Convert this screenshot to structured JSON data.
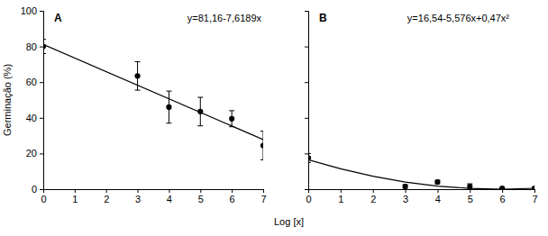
{
  "chart_data": [
    {
      "type": "scatter",
      "title": "A",
      "y_label": "Germinação (%)",
      "x_label": "Log [x]",
      "xlim": [
        0,
        7
      ],
      "xticks": [
        0,
        1,
        2,
        3,
        4,
        5,
        6,
        7
      ],
      "ylim": [
        0,
        100
      ],
      "yticks": [
        0,
        20,
        40,
        60,
        80,
        100
      ],
      "annotations": [
        {
          "text": "y=81,16-7,6189x"
        }
      ],
      "series": [
        {
          "type": "scatter",
          "marker": "circle",
          "color": "#000000",
          "x": [
            0,
            3,
            4,
            5,
            6,
            7
          ],
          "values": [
            80,
            63.5,
            46,
            43.5,
            39.5,
            24.5
          ],
          "errors": [
            4,
            8,
            9,
            8,
            4.5,
            8
          ]
        },
        {
          "type": "line",
          "line_style": "solid",
          "color": "#000000",
          "x": [
            0,
            7
          ],
          "values": [
            81.2,
            27.8
          ]
        }
      ]
    },
    {
      "type": "scatter",
      "title": "B",
      "tick_labels": "x",
      "xlim": [
        0,
        7
      ],
      "xticks": [
        0,
        1,
        2,
        3,
        4,
        5,
        6,
        7
      ],
      "ylim": [
        0,
        100
      ],
      "yticks": [
        0,
        20,
        40,
        60,
        80,
        100
      ],
      "annotations": [
        {
          "text": "y=16,54-5,576x+0,47x²"
        }
      ],
      "series": [
        {
          "type": "scatter",
          "marker": "circle",
          "color": "#000000",
          "x": [
            0,
            3,
            4,
            5,
            6,
            7
          ],
          "values": [
            17.5,
            1.5,
            4,
            1.5,
            0.5,
            0.5
          ],
          "errors": [
            2.5,
            1,
            1,
            1.5,
            0.3,
            0.3
          ]
        },
        {
          "type": "line",
          "line_style": "solid",
          "color": "#000000",
          "x": [
            0,
            1,
            2,
            3,
            4,
            5,
            6,
            7
          ],
          "values": [
            16.5,
            11.4,
            7.3,
            4.0,
            1.7,
            0.4,
            0.0,
            0.5
          ]
        }
      ]
    }
  ]
}
